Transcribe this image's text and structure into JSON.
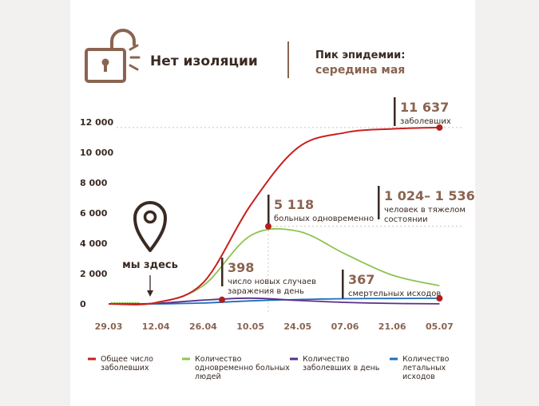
{
  "header": {
    "status_label": "Нет изоляции",
    "peak_label": "Пик эпидемии:",
    "peak_value": "середина мая"
  },
  "colors": {
    "total": "#c9201f",
    "active": "#8dc44f",
    "daily": "#5b2e8c",
    "deaths": "#1e6fb8",
    "accent": "#8a6450",
    "axis_text": "#8a6450",
    "marker": "#b01f1f"
  },
  "marker": {
    "label": "мы здесь"
  },
  "annotations": [
    {
      "value": "11 637",
      "text": [
        "заболевших"
      ]
    },
    {
      "value": "5 118",
      "text": [
        "больных одновременно"
      ]
    },
    {
      "value": "1 024– 1 536",
      "text": [
        "человек в тяжелом",
        "состоянии"
      ]
    },
    {
      "value": "398",
      "text": [
        "число новых случаев",
        "заражения в день"
      ]
    },
    {
      "value": "367",
      "text": [
        "смертельных исходов"
      ]
    }
  ],
  "chart_data": {
    "type": "line",
    "x": [
      "29.03",
      "12.04",
      "26.04",
      "10.05",
      "24.05",
      "07.06",
      "21.06",
      "05.07"
    ],
    "ylim": [
      0,
      12000
    ],
    "yticks": [
      0,
      2000,
      4000,
      6000,
      8000,
      10000,
      12000
    ],
    "ytick_labels": [
      "0",
      "2 000",
      "4 000",
      "6 000",
      "8 000",
      "10 000",
      "12 000"
    ],
    "grid": false,
    "legend_position": "bottom",
    "series": [
      {
        "name": "Общее число заболевших",
        "legend": [
          "Общее число",
          "заболевших"
        ],
        "values": [
          0,
          80,
          1400,
          6500,
          10300,
          11300,
          11550,
          11637
        ]
      },
      {
        "name": "Количество одновременно больных людей",
        "legend": [
          "Количество",
          "одновременно больных",
          "людей"
        ],
        "values": [
          0,
          70,
          1200,
          4500,
          4800,
          3300,
          1900,
          1200
        ]
      },
      {
        "name": "Количество заболевших в день",
        "legend": [
          "Количество",
          "заболевших в день"
        ],
        "values": [
          0,
          30,
          250,
          380,
          230,
          100,
          30,
          5
        ]
      },
      {
        "name": "Количество летальных исходов",
        "legend": [
          "Количество",
          "летальных",
          "исходов"
        ],
        "values": [
          0,
          0,
          60,
          200,
          290,
          340,
          360,
          367
        ]
      }
    ]
  }
}
